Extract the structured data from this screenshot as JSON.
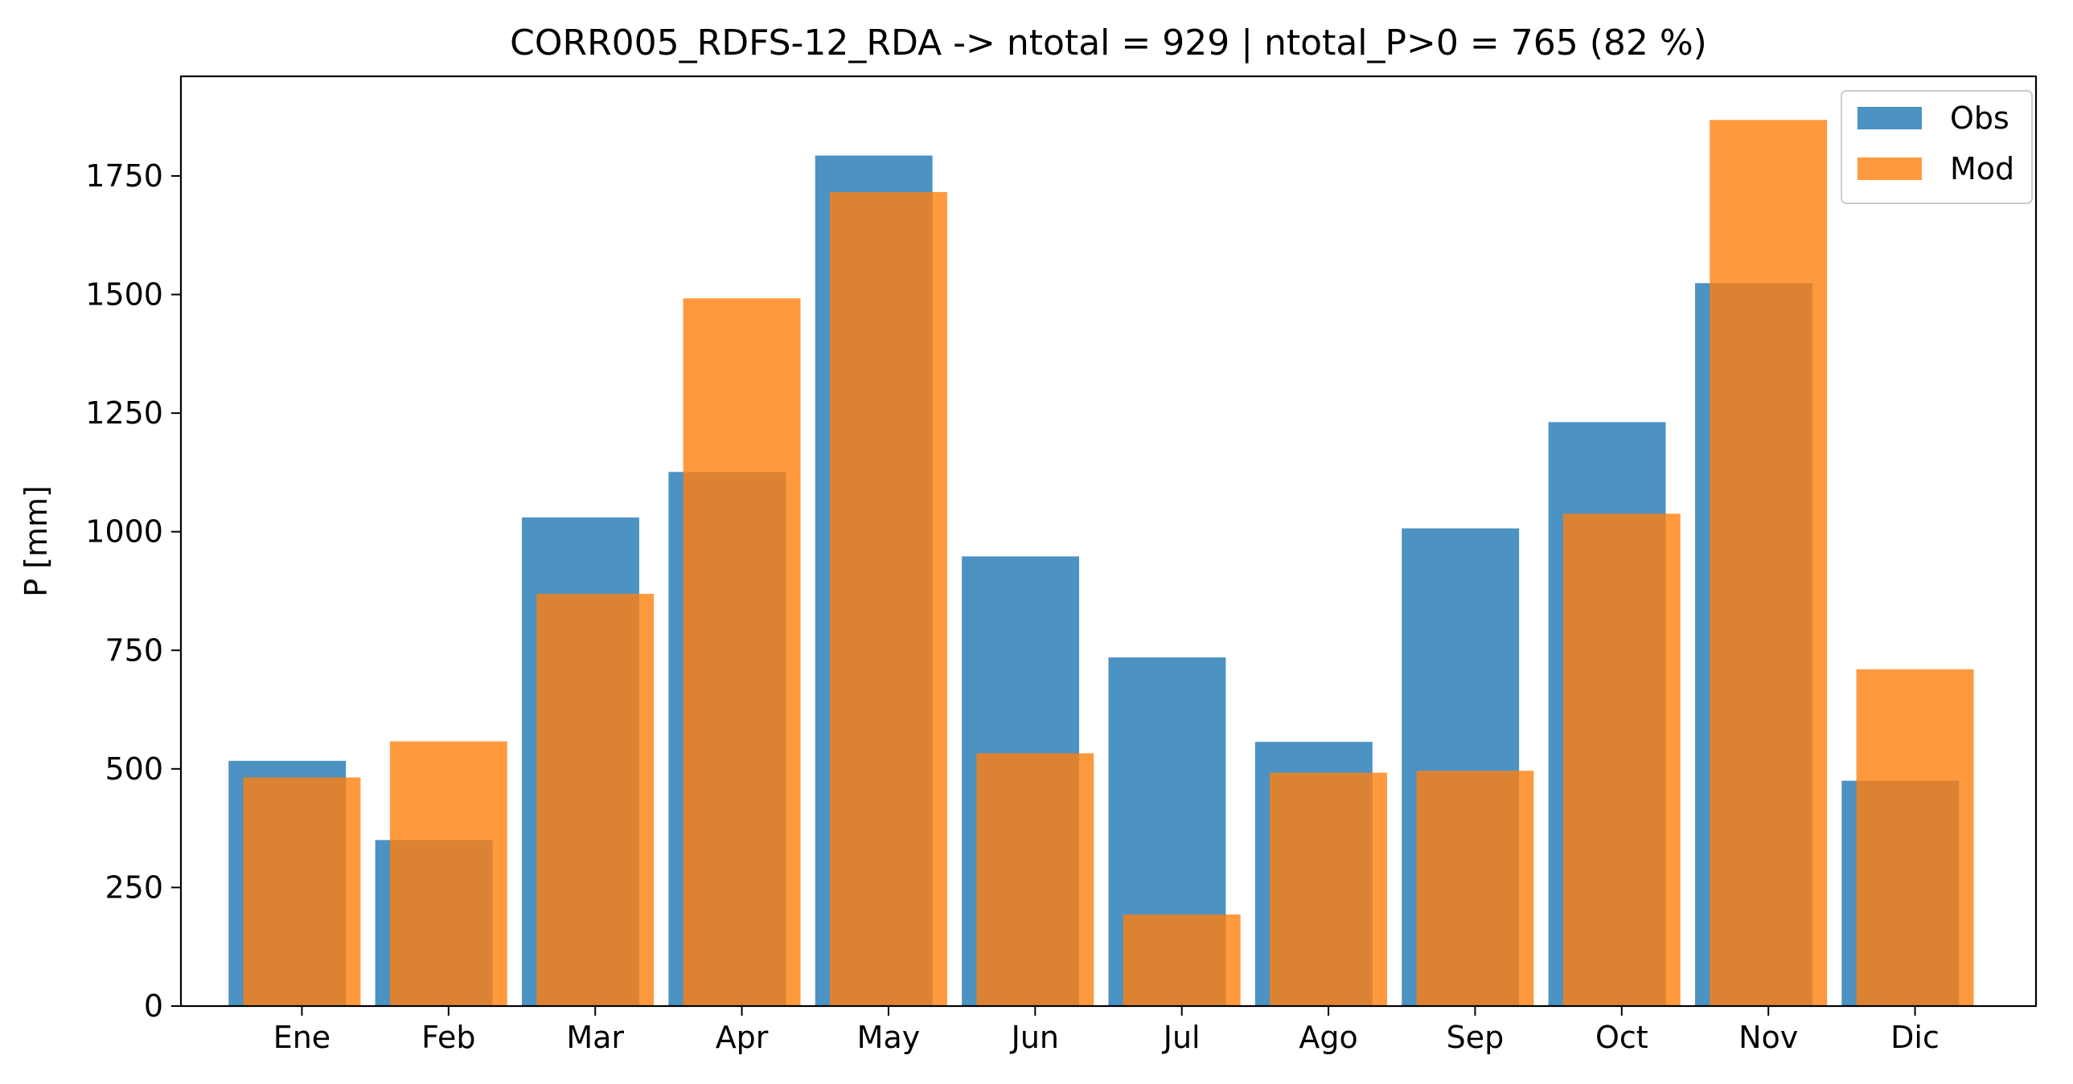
{
  "chart_data": {
    "type": "bar",
    "title": "CORR005_RDFS-12_RDA -> ntotal = 929 | ntotal_P>0 = 765 (82 %)",
    "xlabel": "",
    "ylabel": "P [mm]",
    "ylim": [
      0,
      1960
    ],
    "yticks": [
      0,
      250,
      500,
      750,
      1000,
      1250,
      1500,
      1750
    ],
    "categories": [
      "Ene",
      "Feb",
      "Mar",
      "Apr",
      "May",
      "Jun",
      "Jul",
      "Ago",
      "Sep",
      "Oct",
      "Nov",
      "Dic"
    ],
    "series": [
      {
        "name": "Obs",
        "color": "#1f77b4",
        "values": [
          517,
          350,
          1030,
          1126,
          1793,
          948,
          735,
          557,
          1007,
          1231,
          1524,
          475
        ]
      },
      {
        "name": "Mod",
        "color": "#ff7f0e",
        "values": [
          482,
          558,
          869,
          1492,
          1716,
          533,
          193,
          492,
          496,
          1038,
          1868,
          710
        ]
      }
    ],
    "legend_position": "top-right",
    "grid": false
  }
}
